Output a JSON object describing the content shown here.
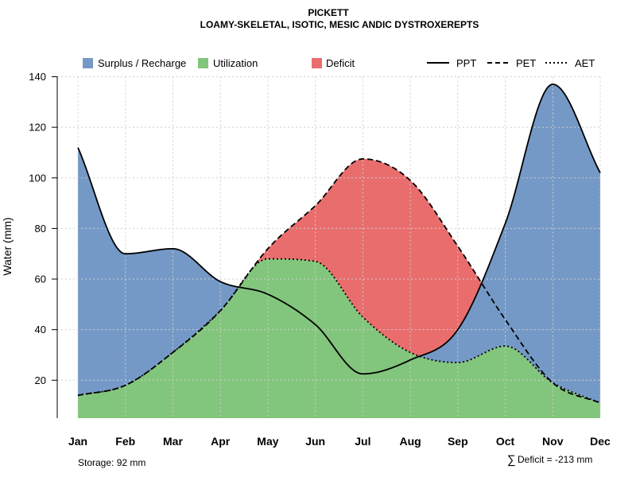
{
  "chart_data": {
    "type": "area",
    "title": "PICKETT",
    "subtitle": "LOAMY-SKELETAL, ISOTIC, MESIC ANDIC DYSTROXEREPTS",
    "ylabel": "Water (mm)",
    "xlabel": "",
    "categories": [
      "Jan",
      "Feb",
      "Mar",
      "Apr",
      "May",
      "Jun",
      "Jul",
      "Aug",
      "Sep",
      "Oct",
      "Nov",
      "Dec"
    ],
    "ylim": [
      5,
      140
    ],
    "yticks": [
      20,
      40,
      60,
      80,
      100,
      120,
      140
    ],
    "grid": true,
    "series": [
      {
        "name": "PPT",
        "line_style": "solid",
        "values": [
          112,
          70,
          72,
          59,
          54,
          42,
          22.5,
          28,
          40,
          82,
          137,
          102
        ]
      },
      {
        "name": "PET",
        "line_style": "dashed",
        "values": [
          14,
          18,
          31,
          47.5,
          72,
          89,
          107.5,
          99,
          73,
          44,
          19,
          11
        ]
      },
      {
        "name": "AET",
        "line_style": "dotted",
        "values": [
          14,
          18,
          31,
          47.5,
          68,
          67,
          45,
          31,
          27,
          33.5,
          19,
          11
        ]
      }
    ],
    "fills": [
      {
        "name": "Surplus / Recharge",
        "color": "#7499c6"
      },
      {
        "name": "Utilization",
        "color": "#82c57c"
      },
      {
        "name": "Deficit",
        "color": "#e96d6d"
      }
    ],
    "legend": {
      "placement": "top",
      "items": [
        {
          "label": "Surplus / Recharge",
          "kind": "fill",
          "color": "#7499c6"
        },
        {
          "label": "Utilization",
          "kind": "fill",
          "color": "#82c57c"
        },
        {
          "label": "Deficit",
          "kind": "fill",
          "color": "#e96d6d"
        },
        {
          "label": "PPT",
          "kind": "line",
          "dash": "solid"
        },
        {
          "label": "PET",
          "kind": "line",
          "dash": "dashed"
        },
        {
          "label": "AET",
          "kind": "line",
          "dash": "dotted"
        }
      ]
    },
    "annotations": {
      "storage": "Storage: 92 mm",
      "deficit_symbol": "∑",
      "deficit": "Deficit = -213 mm"
    }
  }
}
